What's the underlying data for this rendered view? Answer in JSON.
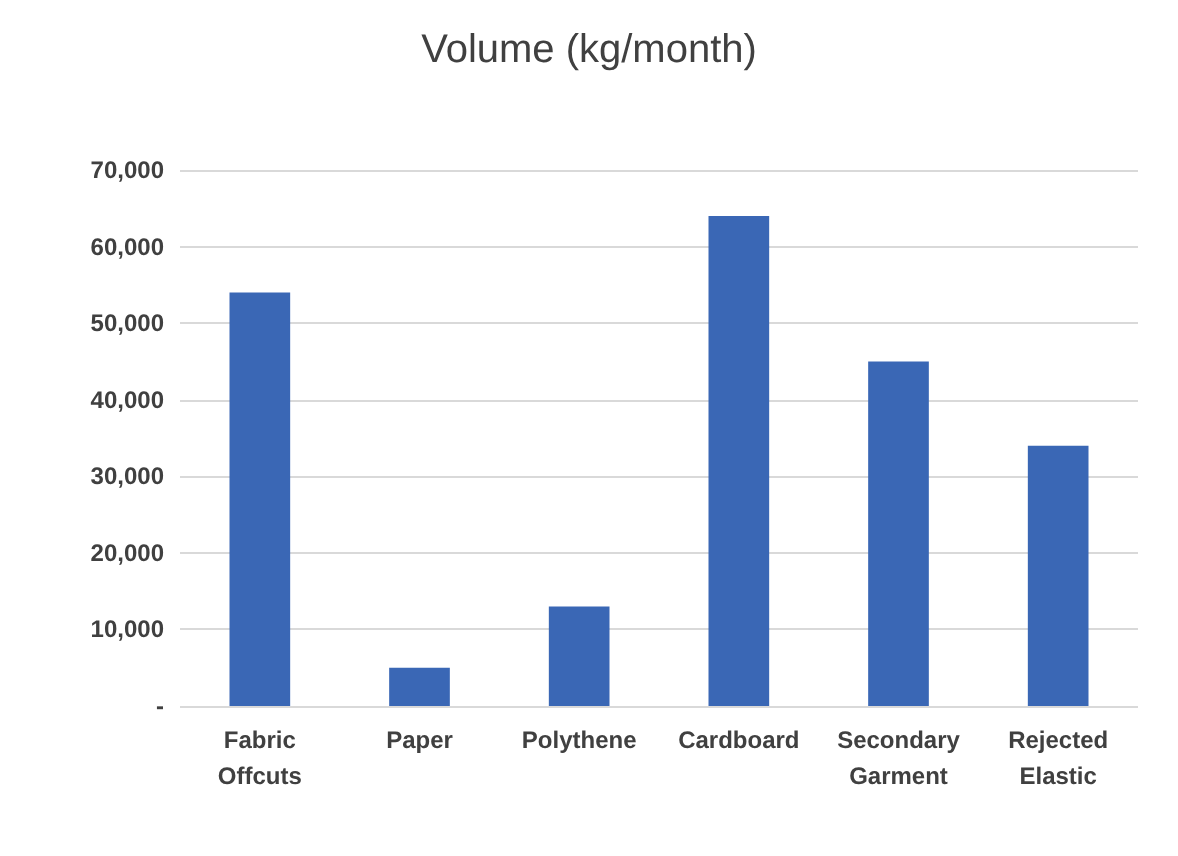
{
  "chart_data": {
    "type": "bar",
    "title": "Volume (kg/month)",
    "categories": [
      "Fabric Offcuts",
      "Paper",
      "Polythene",
      "Cardboard",
      "Secondary Garment",
      "Rejected Elastic"
    ],
    "values": [
      54000,
      5000,
      13000,
      64000,
      45000,
      34000
    ],
    "color": "#3a67b5",
    "ylim": [
      0,
      70000
    ],
    "yticks": [
      {
        "value": 0,
        "label": "-"
      },
      {
        "value": 10000,
        "label": "10,000"
      },
      {
        "value": 20000,
        "label": "20,000"
      },
      {
        "value": 30000,
        "label": "30,000"
      },
      {
        "value": 40000,
        "label": "40,000"
      },
      {
        "value": 50000,
        "label": "50,000"
      },
      {
        "value": 60000,
        "label": "60,000"
      },
      {
        "value": 70000,
        "label": "70,000"
      }
    ],
    "grid": true
  }
}
